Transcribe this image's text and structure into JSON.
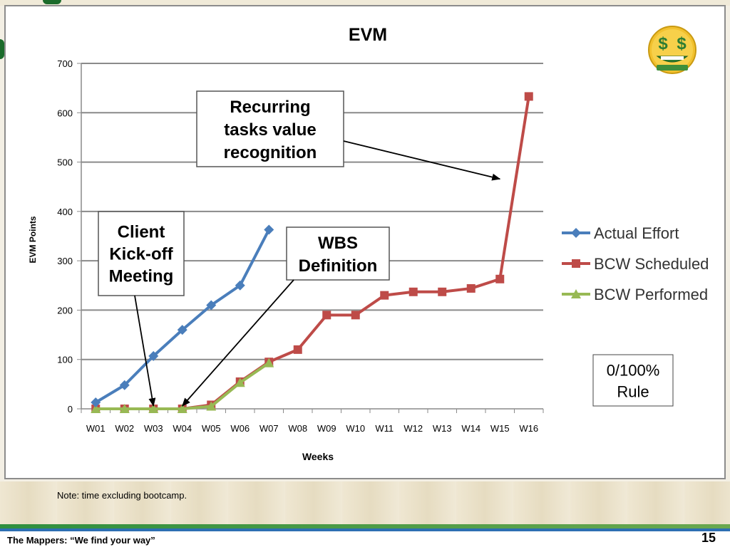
{
  "chart_data": {
    "type": "line",
    "title": "EVM",
    "xlabel": "Weeks",
    "ylabel": "EVM Points",
    "ylim": [
      0,
      700
    ],
    "yticks": [
      0,
      100,
      200,
      300,
      400,
      500,
      600,
      700
    ],
    "grid": true,
    "legend_position": "right",
    "categories": [
      "W01",
      "W02",
      "W03",
      "W04",
      "W05",
      "W06",
      "W07",
      "W08",
      "W09",
      "W10",
      "W11",
      "W12",
      "W13",
      "W14",
      "W15",
      "W16"
    ],
    "series": [
      {
        "name": "Actual Effort",
        "color": "#4a7ebb",
        "marker": "diamond",
        "values": [
          13,
          48,
          107,
          160,
          210,
          250,
          363,
          null,
          null,
          null,
          null,
          null,
          null,
          null,
          null,
          null
        ]
      },
      {
        "name": "BCW Scheduled",
        "color": "#be4b48",
        "marker": "square",
        "values": [
          0,
          0,
          0,
          0,
          8,
          55,
          95,
          120,
          190,
          190,
          230,
          237,
          237,
          244,
          263,
          633
        ]
      },
      {
        "name": "BCW Performed",
        "color": "#98b954",
        "marker": "triangle",
        "values": [
          0,
          0,
          0,
          0,
          5,
          53,
          93,
          null,
          null,
          null,
          null,
          null,
          null,
          null,
          null,
          null
        ]
      }
    ],
    "annotations": [
      {
        "id": "recurring",
        "lines": [
          "Recurring",
          "tasks value",
          "recognition"
        ],
        "bold": true,
        "points_to": {
          "category": "W15",
          "value": 460
        }
      },
      {
        "id": "kickoff",
        "lines": [
          "Client",
          "Kick-off",
          "Meeting"
        ],
        "bold": true,
        "points_to": {
          "category": "W03",
          "value": 0
        }
      },
      {
        "id": "wbs",
        "lines": [
          "WBS",
          "Definition"
        ],
        "bold": true,
        "points_to": {
          "category": "W04",
          "value": 0
        }
      },
      {
        "id": "rule",
        "lines": [
          "0/100%",
          "Rule"
        ],
        "bold": false
      }
    ]
  },
  "icon": "money-face-icon",
  "note": "Note: time excluding bootcamp.",
  "footer": {
    "text": "The Mappers: “We find your way”",
    "page": "15"
  }
}
